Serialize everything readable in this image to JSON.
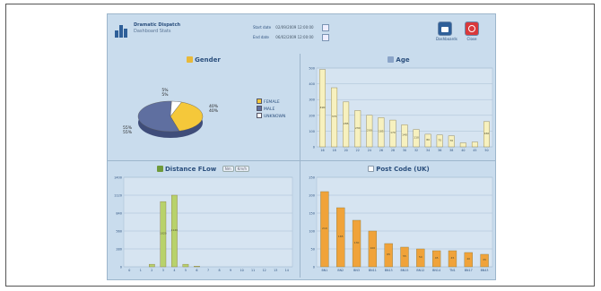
{
  "header": {
    "title": "Dramatic Dispatch",
    "subtitle": "Dashboard Stats",
    "start_label": "Start date",
    "start_value": "02/09/2009 12:00:00",
    "end_label": "End date",
    "end_value": "06/02/2009 12:00:00",
    "dashboard_label": "Dashboards",
    "close_label": "Close"
  },
  "colors": {
    "app_bg": "#c9dced",
    "female": "#f5c83a",
    "male": "#5f6fa0",
    "unknown": "#ffffff",
    "age_bar": "#f7f1bf",
    "distance_bar": "#b8d26b",
    "postcode_bar": "#f0a33a"
  },
  "charts": {
    "gender": {
      "title": "Gender",
      "legend": [
        "FEMALE",
        "MALE",
        "UNKNOWN"
      ],
      "slice_labels": [
        "40%\n40%",
        "5%\n5%",
        "55%\n55%"
      ]
    },
    "age": {
      "title": "Age"
    },
    "distance": {
      "title": "Distance FLow",
      "toggle": [
        "Nm",
        "Km/h"
      ]
    },
    "postcode": {
      "title": "Post Code (UK)"
    }
  },
  "chart_data": [
    {
      "type": "pie",
      "title": "Gender",
      "labels": [
        "FEMALE",
        "MALE",
        "UNKNOWN"
      ],
      "values": [
        40,
        55,
        5
      ]
    },
    {
      "type": "bar",
      "title": "Age",
      "categories": [
        "16",
        "18",
        "20",
        "22",
        "24",
        "26",
        "28",
        "30",
        "32",
        "34",
        "36",
        "38",
        "40",
        "45",
        "50"
      ],
      "values": [
        490,
        375,
        285,
        230,
        200,
        185,
        170,
        140,
        110,
        80,
        75,
        70,
        25,
        30,
        160
      ],
      "ylim": [
        0,
        500
      ]
    },
    {
      "type": "bar",
      "title": "Distance FLow",
      "categories": [
        "0",
        "1",
        "2",
        "3",
        "4",
        "5",
        "6",
        "7",
        "8",
        "9",
        "10",
        "11",
        "12",
        "13",
        "14"
      ],
      "values": [
        0,
        0,
        40,
        1020,
        1120,
        40,
        10,
        0,
        0,
        0,
        0,
        0,
        0,
        0,
        0
      ],
      "ylim": [
        0,
        1400
      ]
    },
    {
      "type": "bar",
      "title": "Post Code (UK)",
      "categories": [
        "BN1",
        "BN2",
        "BN3",
        "BN11",
        "BN13",
        "BN15",
        "BN12",
        "BN14",
        "TN1",
        "BN17",
        "BN43"
      ],
      "values": [
        210,
        165,
        130,
        100,
        65,
        55,
        50,
        45,
        45,
        40,
        35
      ],
      "ylim": [
        0,
        250
      ]
    }
  ]
}
